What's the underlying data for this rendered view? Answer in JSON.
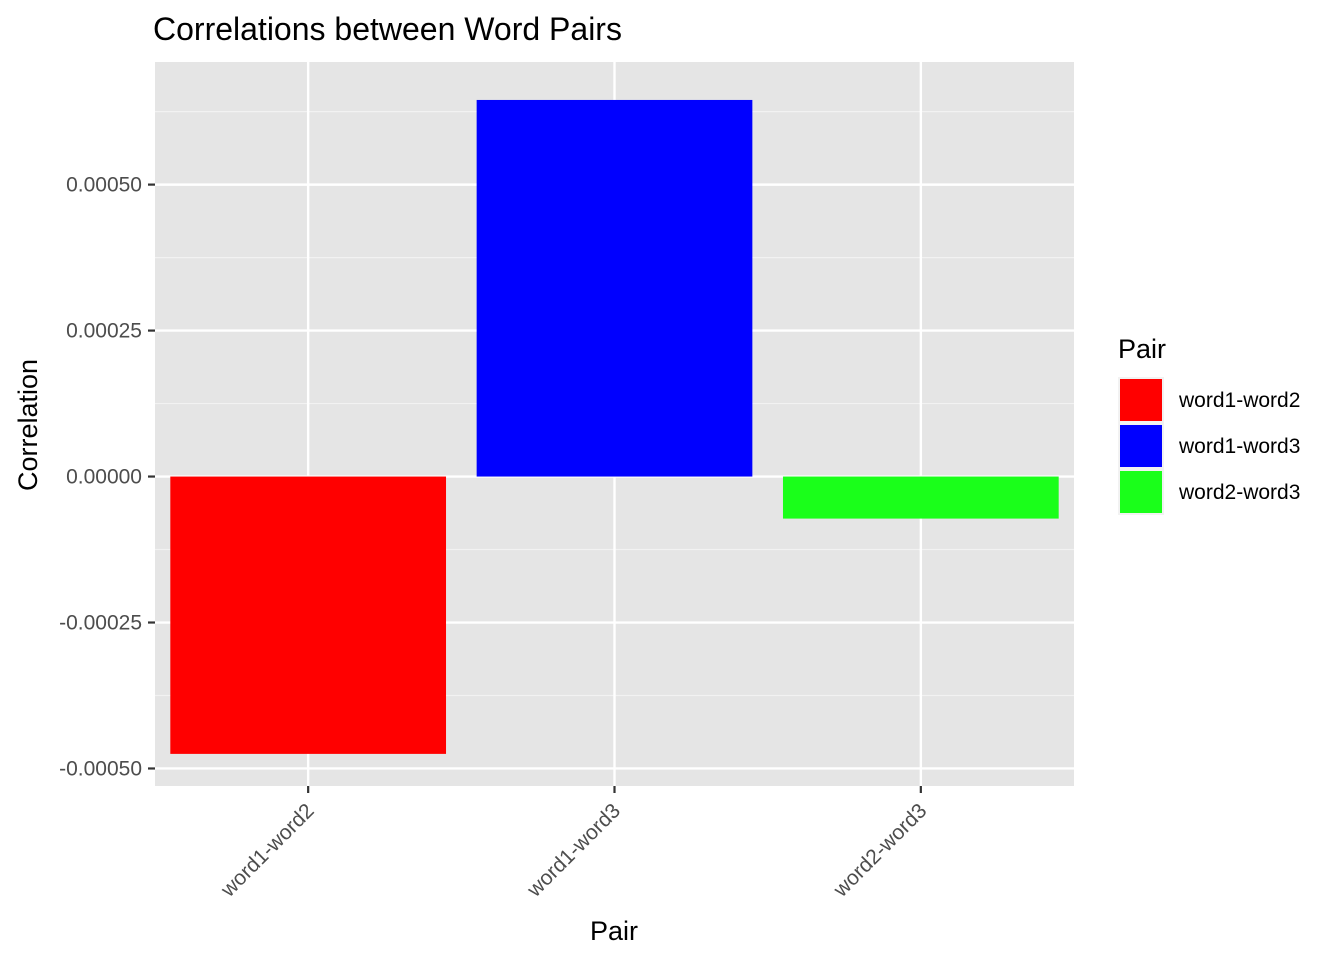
{
  "chart_data": {
    "type": "bar",
    "title": "Correlations between Word Pairs",
    "xlabel": "Pair",
    "ylabel": "Correlation",
    "categories": [
      "word1-word2",
      "word1-word3",
      "word2-word3"
    ],
    "values": [
      -0.000475,
      0.000645,
      -7.2e-05
    ],
    "colors": [
      "#ff0000",
      "#0000ff",
      "#1aff1a"
    ],
    "ylim": [
      -0.00053,
      0.00071
    ],
    "yticks": [
      {
        "value": -0.0005,
        "label": "-0.00050"
      },
      {
        "value": -0.00025,
        "label": "-0.00025"
      },
      {
        "value": 0.0,
        "label": "0.00000"
      },
      {
        "value": 0.00025,
        "label": "0.00025"
      },
      {
        "value": 0.0005,
        "label": "0.00050"
      }
    ],
    "grid": true,
    "legend": {
      "title": "Pair",
      "position": "right",
      "entries": [
        "word1-word2",
        "word1-word3",
        "word2-word3"
      ]
    }
  }
}
